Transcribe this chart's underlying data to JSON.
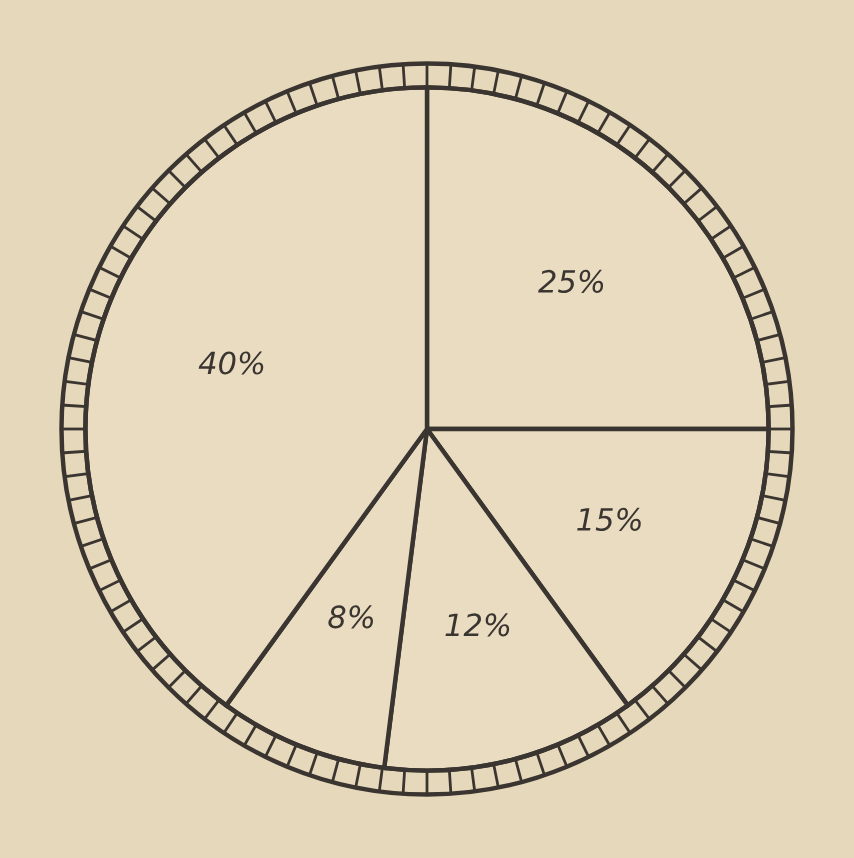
{
  "chart_data": {
    "type": "pie",
    "categories": [
      null,
      null,
      null,
      null,
      null
    ],
    "values": [
      25,
      15,
      12,
      8,
      40
    ],
    "value_labels": [
      "25%",
      "15%",
      "12%",
      "8%",
      "40%"
    ],
    "colors": [
      "#e9dcc0",
      "#e9dcc0",
      "#e9dcc0",
      "#e9dcc0",
      "#e9dcc0"
    ]
  }
}
